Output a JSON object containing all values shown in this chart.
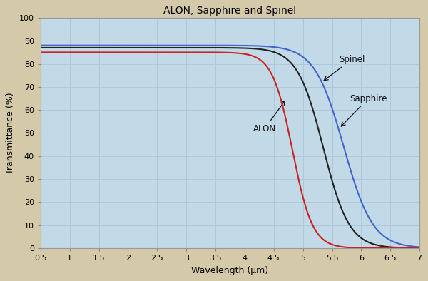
{
  "title": "ALON, Sapphire and Spinel",
  "xlabel": "Wavelength (μm)",
  "ylabel": "Transmittance (%)",
  "xlim": [
    0.5,
    7.0
  ],
  "ylim": [
    0,
    100
  ],
  "xticks": [
    0.5,
    1.0,
    1.5,
    2.0,
    2.5,
    3.0,
    3.5,
    4.0,
    4.5,
    5.0,
    5.5,
    6.0,
    6.5,
    7.0
  ],
  "yticks": [
    0,
    10,
    20,
    30,
    40,
    50,
    60,
    70,
    80,
    90,
    100
  ],
  "background_color": "#d4c9a8",
  "plot_bg_color": "#c2d9e8",
  "grid_color": "#adc8da",
  "alon_color": "#cc2222",
  "spinel_color": "#4466cc",
  "sapphire_color": "#222222",
  "annotation_color": "#111111",
  "title_fontsize": 10,
  "axis_label_fontsize": 9,
  "tick_fontsize": 8,
  "alon_flat": 85.0,
  "alon_x50": 4.85,
  "alon_steep": 5.5,
  "sapphire_flat": 87.0,
  "sapphire_x50": 5.35,
  "sapphire_steep": 4.5,
  "spinel_flat": 88.0,
  "spinel_x50": 5.7,
  "spinel_steep": 4.0
}
